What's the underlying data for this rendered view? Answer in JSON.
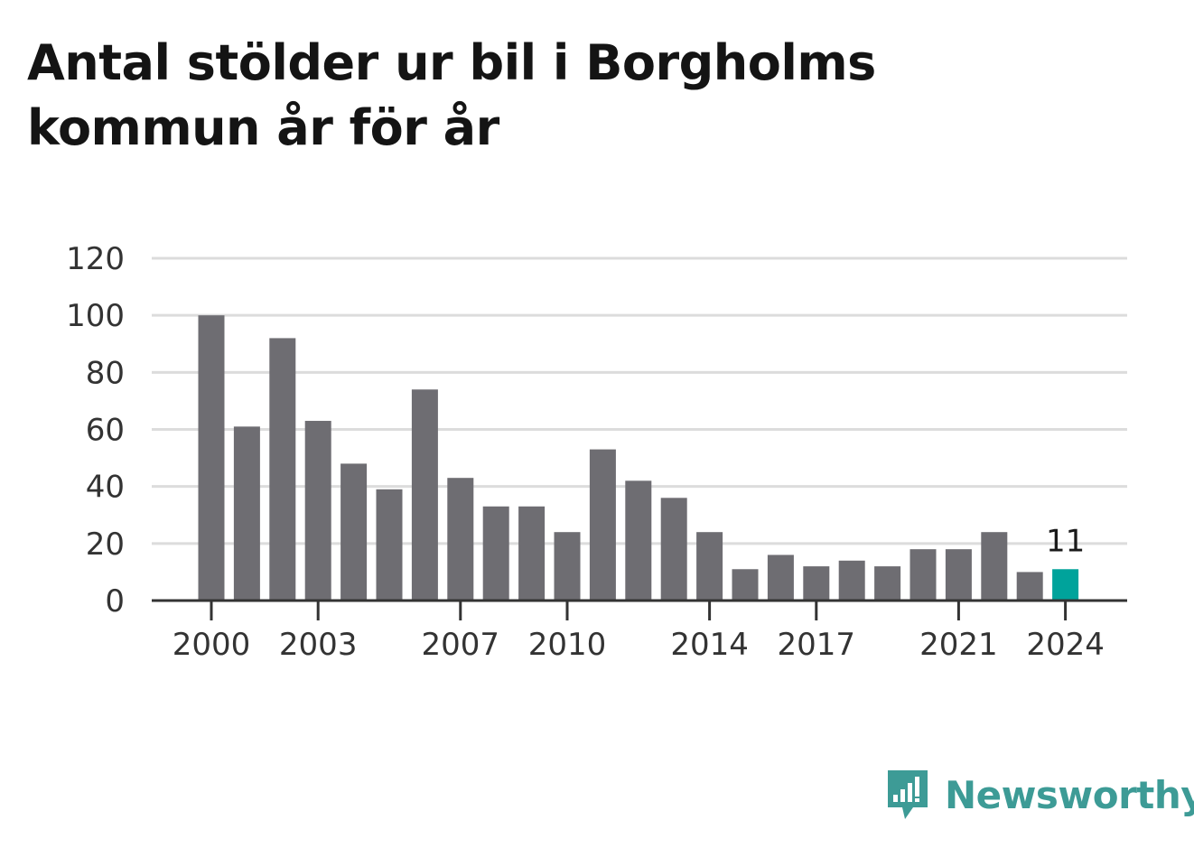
{
  "title": "Antal stölder ur bil i Borgholms kommun år för år",
  "brand": {
    "name": "Newsworthy",
    "color": "#3d9b96",
    "icon": "newsworthy-logo-icon"
  },
  "colors": {
    "bar": "#6e6d72",
    "highlight": "#00a39b",
    "grid": "#dcdcdc",
    "axis": "#333333"
  },
  "chart_data": {
    "type": "bar",
    "title": "Antal stölder ur bil i Borgholms kommun år för år",
    "xlabel": "",
    "ylabel": "",
    "categories": [
      "2000",
      "2001",
      "2002",
      "2003",
      "2004",
      "2005",
      "2006",
      "2007",
      "2008",
      "2009",
      "2010",
      "2011",
      "2012",
      "2013",
      "2014",
      "2015",
      "2016",
      "2017",
      "2018",
      "2019",
      "2020",
      "2021",
      "2022",
      "2023",
      "2024"
    ],
    "values": [
      100,
      61,
      92,
      63,
      48,
      39,
      74,
      43,
      33,
      33,
      24,
      53,
      42,
      36,
      24,
      11,
      16,
      12,
      14,
      12,
      18,
      18,
      24,
      10,
      11
    ],
    "x_tick_labels": [
      "2000",
      "2003",
      "2007",
      "2010",
      "2014",
      "2017",
      "2021",
      "2024"
    ],
    "y_ticks": [
      0,
      20,
      40,
      60,
      80,
      100,
      120
    ],
    "ylim": [
      0,
      120
    ],
    "grid": true,
    "highlight": {
      "category": "2024",
      "label": "11"
    }
  }
}
